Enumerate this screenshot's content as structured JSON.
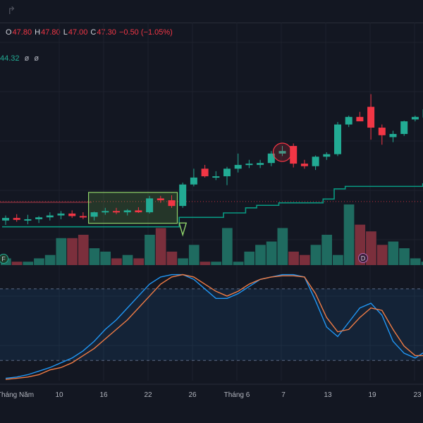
{
  "toolbar": {
    "redo_icon": "redo-icon"
  },
  "legend": {
    "o_label": "O",
    "o_value": "47.80",
    "h_label": "H",
    "h_value": "47.80",
    "l_label": "L",
    "l_value": "47.00",
    "c_label": "C",
    "c_value": "47.30",
    "change": "−0.50 (−1.05%)"
  },
  "indicator": {
    "value": "44.32",
    "p1": "ø",
    "p2": "ø"
  },
  "colors": {
    "up": "#22ab94",
    "down": "#f23645",
    "vol_up": "#1f6b60",
    "vol_down": "#7b2f3c",
    "trail": "#089981",
    "k": "#2196f3",
    "d": "#f07c45"
  },
  "chart_data": [
    {
      "type": "candlestick",
      "title": "",
      "x_ticks": [
        "Tháng Năm",
        "10",
        "16",
        "22",
        "26",
        "Tháng 6",
        "7",
        "13",
        "19",
        "23"
      ],
      "markers": [
        "F",
        "D"
      ],
      "candles": [
        {
          "o": 25.6,
          "h": 26.4,
          "l": 24.9,
          "c": 26.0
        },
        {
          "o": 26.0,
          "h": 26.6,
          "l": 25.4,
          "c": 25.7
        },
        {
          "o": 25.7,
          "h": 26.5,
          "l": 25.0,
          "c": 25.8
        },
        {
          "o": 25.8,
          "h": 26.3,
          "l": 25.2,
          "c": 26.1
        },
        {
          "o": 26.1,
          "h": 26.9,
          "l": 25.6,
          "c": 26.4
        },
        {
          "o": 26.4,
          "h": 27.1,
          "l": 25.8,
          "c": 26.7
        },
        {
          "o": 26.7,
          "h": 27.2,
          "l": 26.0,
          "c": 26.3
        },
        {
          "o": 26.3,
          "h": 26.9,
          "l": 25.8,
          "c": 26.1
        },
        {
          "o": 26.2,
          "h": 27.0,
          "l": 25.6,
          "c": 26.9
        },
        {
          "o": 26.9,
          "h": 27.6,
          "l": 26.5,
          "c": 27.1
        },
        {
          "o": 27.1,
          "h": 27.6,
          "l": 26.6,
          "c": 26.9
        },
        {
          "o": 26.9,
          "h": 27.4,
          "l": 26.4,
          "c": 27.2
        },
        {
          "o": 27.2,
          "h": 27.7,
          "l": 26.8,
          "c": 26.9
        },
        {
          "o": 26.9,
          "h": 29.5,
          "l": 26.7,
          "c": 29.1
        },
        {
          "o": 29.1,
          "h": 29.5,
          "l": 28.4,
          "c": 28.8
        },
        {
          "o": 28.8,
          "h": 29.6,
          "l": 27.6,
          "c": 27.9
        },
        {
          "o": 27.9,
          "h": 31.6,
          "l": 27.6,
          "c": 31.3
        },
        {
          "o": 31.3,
          "h": 33.8,
          "l": 31.0,
          "c": 32.4
        },
        {
          "o": 33.8,
          "h": 34.4,
          "l": 32.4,
          "c": 32.6
        },
        {
          "o": 32.6,
          "h": 33.4,
          "l": 32.0,
          "c": 32.6
        },
        {
          "o": 32.6,
          "h": 34.1,
          "l": 31.2,
          "c": 33.8
        },
        {
          "o": 33.8,
          "h": 36.2,
          "l": 33.2,
          "c": 34.4
        },
        {
          "o": 34.4,
          "h": 35.2,
          "l": 33.9,
          "c": 34.6
        },
        {
          "o": 34.4,
          "h": 35.2,
          "l": 33.9,
          "c": 34.7
        },
        {
          "o": 34.7,
          "h": 36.6,
          "l": 34.2,
          "c": 36.2
        },
        {
          "o": 36.2,
          "h": 37.4,
          "l": 35.8,
          "c": 36.6
        },
        {
          "o": 37.4,
          "h": 37.8,
          "l": 34.0,
          "c": 34.6
        },
        {
          "o": 34.6,
          "h": 35.2,
          "l": 33.8,
          "c": 34.2
        },
        {
          "o": 34.2,
          "h": 35.9,
          "l": 33.6,
          "c": 35.7
        },
        {
          "o": 35.7,
          "h": 36.4,
          "l": 35.2,
          "c": 36.1
        },
        {
          "o": 36.1,
          "h": 41.2,
          "l": 35.8,
          "c": 40.8
        },
        {
          "o": 40.8,
          "h": 42.2,
          "l": 40.4,
          "c": 42.0
        },
        {
          "o": 42.0,
          "h": 42.8,
          "l": 41.4,
          "c": 41.3
        },
        {
          "o": 43.6,
          "h": 45.6,
          "l": 38.4,
          "c": 40.3
        },
        {
          "o": 40.3,
          "h": 40.8,
          "l": 37.6,
          "c": 39.1
        },
        {
          "o": 38.8,
          "h": 39.8,
          "l": 38.0,
          "c": 39.3
        },
        {
          "o": 39.3,
          "h": 41.4,
          "l": 39.0,
          "c": 41.3
        },
        {
          "o": 41.6,
          "h": 42.2,
          "l": 41.3,
          "c": 42.0
        },
        {
          "o": 41.9,
          "h": 44.9,
          "l": 40.3,
          "c": 43.2
        },
        {
          "o": 42.9,
          "h": 44.6,
          "l": 42.0,
          "c": 43.4
        }
      ],
      "trailing_stop": [
        24.6,
        24.6,
        24.6,
        24.6,
        24.6,
        24.6,
        24.6,
        24.6,
        24.6,
        24.6,
        24.6,
        24.6,
        24.6,
        24.6,
        24.6,
        24.6,
        26.1,
        26.1,
        26.1,
        26.1,
        26.8,
        26.8,
        27.6,
        28.0,
        28.0,
        28.4,
        28.4,
        28.4,
        28.4,
        29.0,
        30.6,
        31.0,
        31.0,
        31.0,
        31.0,
        31.0,
        31.0,
        31.0,
        31.4,
        31.8
      ],
      "volume": [
        2,
        1,
        1,
        2,
        3,
        8,
        8,
        9,
        5,
        4,
        2,
        3,
        2,
        9,
        11,
        4,
        2,
        6,
        1,
        1,
        11,
        1,
        4,
        6,
        7,
        11,
        4,
        3,
        6,
        9,
        3,
        18,
        12,
        10,
        6,
        7,
        5,
        2,
        1,
        8
      ],
      "box_bars": [
        8,
        15
      ],
      "resistance_level": 28.6
    },
    {
      "type": "line",
      "title": "",
      "ylim": [
        0,
        100
      ],
      "levels": [
        80,
        20
      ],
      "series": [
        {
          "values": [
            5,
            6,
            8,
            11,
            14,
            18,
            22,
            28,
            36,
            46,
            54,
            64,
            74,
            84,
            90,
            92,
            92,
            88,
            80,
            72,
            72,
            76,
            82,
            88,
            90,
            92,
            92,
            90,
            70,
            48,
            40,
            52,
            64,
            68,
            58,
            36,
            26,
            22,
            28,
            36
          ]
        },
        {
          "values": [
            4,
            5,
            6,
            8,
            12,
            14,
            18,
            24,
            30,
            38,
            46,
            54,
            64,
            74,
            84,
            90,
            92,
            90,
            84,
            78,
            74,
            78,
            84,
            88,
            90,
            91,
            91,
            90,
            76,
            56,
            44,
            46,
            56,
            64,
            62,
            46,
            32,
            24,
            24,
            28
          ]
        }
      ]
    }
  ]
}
